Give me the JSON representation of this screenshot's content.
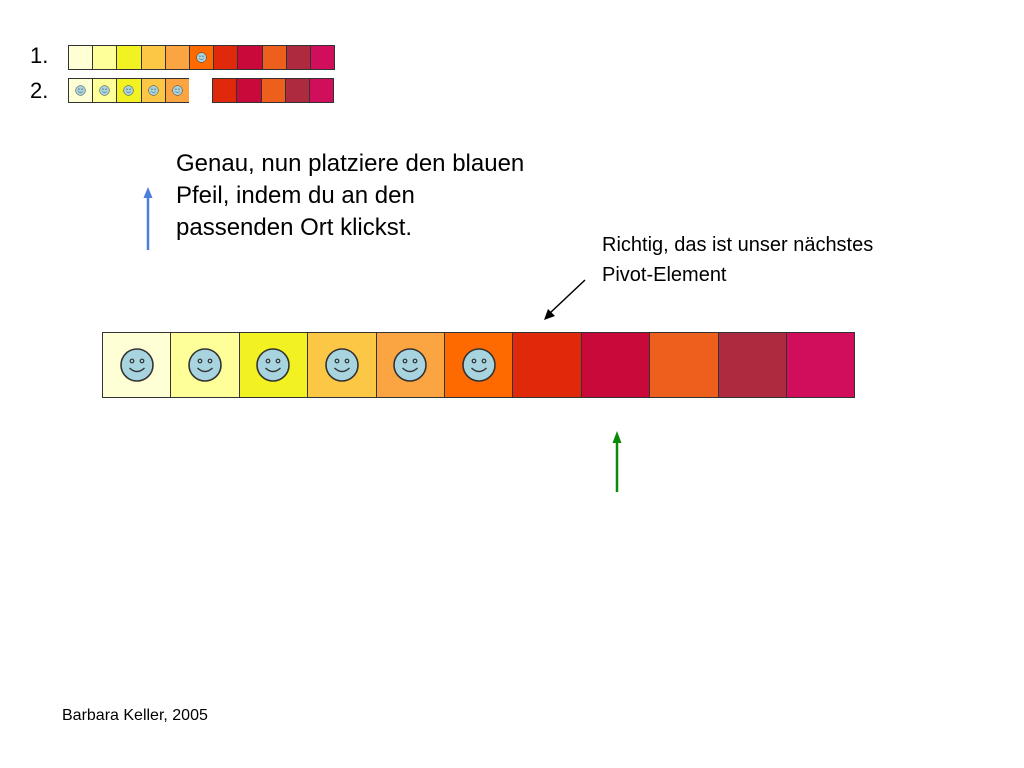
{
  "steps": [
    {
      "label": "1.",
      "cells": [
        {
          "color": "#ffffd6",
          "smiley": false
        },
        {
          "color": "#ffff99",
          "smiley": false
        },
        {
          "color": "#f2f222",
          "smiley": false
        },
        {
          "color": "#fcc745",
          "smiley": false
        },
        {
          "color": "#fba542",
          "smiley": false
        },
        {
          "color": "#ff6a00",
          "smiley": true
        },
        {
          "color": "#e0290a",
          "smiley": false
        },
        {
          "color": "#c8093a",
          "smiley": false
        },
        {
          "color": "#ec5f1c",
          "smiley": false
        },
        {
          "color": "#ae2a3e",
          "smiley": false
        },
        {
          "color": "#d10e5c",
          "smiley": false
        }
      ]
    },
    {
      "label": "2.",
      "cells": [
        {
          "color": "#ffffd6",
          "smiley": true
        },
        {
          "color": "#ffff99",
          "smiley": true
        },
        {
          "color": "#f2f222",
          "smiley": true
        },
        {
          "color": "#fcc745",
          "smiley": true
        },
        {
          "color": "#fba542",
          "smiley": true
        },
        {
          "color": "",
          "smiley": false,
          "gap": true
        },
        {
          "color": "#e0290a",
          "smiley": false
        },
        {
          "color": "#c8093a",
          "smiley": false
        },
        {
          "color": "#ec5f1c",
          "smiley": false
        },
        {
          "color": "#ae2a3e",
          "smiley": false
        },
        {
          "color": "#d10e5c",
          "smiley": false
        }
      ]
    }
  ],
  "main_row": [
    {
      "color": "#ffffd6",
      "smiley": true
    },
    {
      "color": "#ffff99",
      "smiley": true
    },
    {
      "color": "#f2f222",
      "smiley": true
    },
    {
      "color": "#fcc745",
      "smiley": true
    },
    {
      "color": "#fba542",
      "smiley": true
    },
    {
      "color": "#ff6a00",
      "smiley": true
    },
    {
      "color": "#e0290a",
      "smiley": false
    },
    {
      "color": "#c8093a",
      "smiley": false
    },
    {
      "color": "#ec5f1c",
      "smiley": false
    },
    {
      "color": "#ae2a3e",
      "smiley": false
    },
    {
      "color": "#d10e5c",
      "smiley": false
    }
  ],
  "instruction": "Genau, nun platziere den blauen Pfeil, indem du an den passenden Ort klickst.",
  "note": "Richtig, das ist unser nächstes Pivot-Element",
  "footer": "Barbara Keller, 2005",
  "colors": {
    "blue_arrow": "#4a7fdc",
    "green_arrow": "#0a8a0a",
    "smiley_face": "#a8d4e0"
  }
}
